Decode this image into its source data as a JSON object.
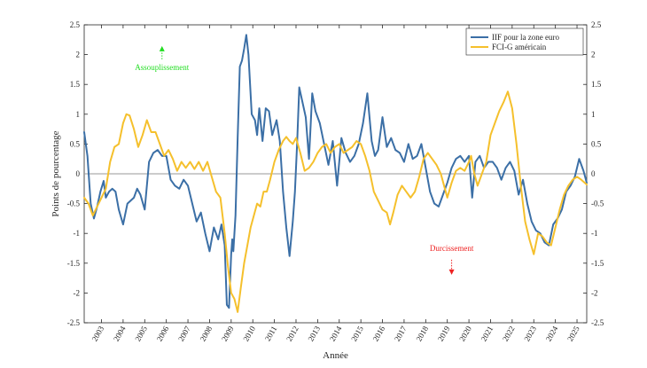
{
  "chart_data": {
    "type": "line",
    "xlabel": "Année",
    "ylabel": "Points de pourcentage",
    "xlim": [
      2002.2,
      2025.45
    ],
    "ylim": [
      -2.5,
      2.5
    ],
    "y_ticks": [
      -2.5,
      -2,
      -1.5,
      -1,
      -0.5,
      0,
      0.5,
      1,
      1.5,
      2,
      2.5
    ],
    "y_tick_labels": [
      "-2.5",
      "-2",
      "-1.5",
      "-1",
      "-0.5",
      "0",
      "0.5",
      "1",
      "1.5",
      "2",
      "2.5"
    ],
    "x_ticks": [
      2003,
      2004,
      2005,
      2006,
      2007,
      2008,
      2009,
      2010,
      2011,
      2012,
      2013,
      2014,
      2015,
      2016,
      2017,
      2018,
      2019,
      2020,
      2021,
      2022,
      2023,
      2024,
      2025
    ],
    "x_tick_labels": [
      "2003",
      "2004",
      "2005",
      "2006",
      "2007",
      "2008",
      "2009",
      "2010",
      "2011",
      "2012",
      "2013",
      "2014",
      "2015",
      "2016",
      "2017",
      "2018",
      "2019",
      "2020",
      "2021",
      "2022",
      "2023",
      "2024",
      "2025"
    ],
    "legend_position": "top-right",
    "annotations": {
      "easing": {
        "text": "Assouplissement",
        "color": "#22dd22",
        "x": 2005.8,
        "y": 2.1,
        "direction": "up"
      },
      "tightening": {
        "text": "Durcissement",
        "color": "#ee2222",
        "x": 2019.2,
        "y": -1.65,
        "direction": "down"
      }
    },
    "series": [
      {
        "name": "IIF pour la zone euro",
        "color": "#3b6fa6",
        "x": [
          2002.2,
          2002.35,
          2002.5,
          2002.65,
          2002.8,
          2002.95,
          2003.1,
          2003.2,
          2003.35,
          2003.5,
          2003.65,
          2003.8,
          2004.0,
          2004.2,
          2004.35,
          2004.5,
          2004.65,
          2004.8,
          2005.0,
          2005.2,
          2005.4,
          2005.6,
          2005.8,
          2006.0,
          2006.2,
          2006.4,
          2006.6,
          2006.8,
          2007.0,
          2007.2,
          2007.4,
          2007.6,
          2007.8,
          2008.0,
          2008.2,
          2008.4,
          2008.55,
          2008.7,
          2008.8,
          2008.9,
          2009.0,
          2009.05,
          2009.1,
          2009.2,
          2009.3,
          2009.4,
          2009.5,
          2009.6,
          2009.7,
          2009.8,
          2009.95,
          2010.1,
          2010.2,
          2010.3,
          2010.45,
          2010.6,
          2010.75,
          2010.9,
          2011.1,
          2011.25,
          2011.4,
          2011.55,
          2011.7,
          2011.85,
          2011.95,
          2012.05,
          2012.15,
          2012.3,
          2012.45,
          2012.6,
          2012.75,
          2012.9,
          2013.1,
          2013.3,
          2013.5,
          2013.7,
          2013.9,
          2014.1,
          2014.3,
          2014.5,
          2014.7,
          2014.9,
          2015.1,
          2015.3,
          2015.5,
          2015.65,
          2015.8,
          2016.0,
          2016.2,
          2016.4,
          2016.6,
          2016.8,
          2017.0,
          2017.2,
          2017.4,
          2017.6,
          2017.8,
          2018.0,
          2018.2,
          2018.4,
          2018.6,
          2018.8,
          2019.0,
          2019.2,
          2019.4,
          2019.6,
          2019.8,
          2020.0,
          2020.15,
          2020.3,
          2020.5,
          2020.7,
          2020.9,
          2021.1,
          2021.3,
          2021.5,
          2021.7,
          2021.9,
          2022.1,
          2022.3,
          2022.5,
          2022.7,
          2022.9,
          2023.1,
          2023.3,
          2023.5,
          2023.7,
          2023.9,
          2024.1,
          2024.3,
          2024.5,
          2024.7,
          2024.9,
          2025.1,
          2025.3,
          2025.45
        ],
        "values": [
          0.7,
          0.3,
          -0.5,
          -0.75,
          -0.55,
          -0.3,
          -0.12,
          -0.4,
          -0.3,
          -0.25,
          -0.3,
          -0.6,
          -0.85,
          -0.5,
          -0.45,
          -0.4,
          -0.25,
          -0.35,
          -0.6,
          0.2,
          0.35,
          0.4,
          0.3,
          0.3,
          -0.1,
          -0.2,
          -0.25,
          -0.1,
          -0.2,
          -0.5,
          -0.8,
          -0.65,
          -1.0,
          -1.3,
          -0.9,
          -1.1,
          -0.85,
          -1.2,
          -2.2,
          -2.25,
          -1.35,
          -1.1,
          -1.3,
          -0.7,
          0.6,
          1.8,
          1.9,
          2.1,
          2.33,
          2.0,
          1.0,
          0.9,
          0.65,
          1.1,
          0.55,
          1.1,
          1.05,
          0.65,
          0.9,
          0.55,
          -0.3,
          -0.9,
          -1.38,
          -0.8,
          -0.3,
          0.5,
          1.45,
          1.2,
          0.95,
          0.25,
          1.35,
          1.05,
          0.85,
          0.5,
          0.15,
          0.55,
          -0.2,
          0.6,
          0.35,
          0.2,
          0.3,
          0.5,
          0.85,
          1.35,
          0.55,
          0.3,
          0.4,
          0.95,
          0.45,
          0.6,
          0.4,
          0.35,
          0.2,
          0.5,
          0.25,
          0.3,
          0.5,
          0.1,
          -0.3,
          -0.5,
          -0.55,
          -0.35,
          -0.15,
          0.1,
          0.25,
          0.3,
          0.2,
          0.3,
          -0.4,
          0.2,
          0.3,
          0.1,
          0.2,
          0.2,
          0.1,
          -0.1,
          0.1,
          0.2,
          0.05,
          -0.35,
          -0.1,
          -0.5,
          -0.8,
          -0.95,
          -1.0,
          -1.15,
          -1.2,
          -0.85,
          -0.75,
          -0.6,
          -0.3,
          -0.2,
          -0.05,
          0.25,
          0.05,
          -0.15
        ]
      },
      {
        "name": "FCI-G américain",
        "color": "#f5c02c",
        "x": [
          2002.2,
          2002.4,
          2002.6,
          2002.8,
          2003.0,
          2003.2,
          2003.4,
          2003.6,
          2003.8,
          2004.0,
          2004.15,
          2004.3,
          2004.5,
          2004.7,
          2004.9,
          2005.1,
          2005.3,
          2005.5,
          2005.7,
          2005.9,
          2006.1,
          2006.3,
          2006.5,
          2006.7,
          2006.9,
          2007.1,
          2007.3,
          2007.5,
          2007.7,
          2007.9,
          2008.1,
          2008.3,
          2008.5,
          2008.7,
          2008.85,
          2009.0,
          2009.15,
          2009.3,
          2009.45,
          2009.6,
          2009.75,
          2009.9,
          2010.05,
          2010.2,
          2010.35,
          2010.5,
          2010.65,
          2010.8,
          2011.0,
          2011.2,
          2011.4,
          2011.55,
          2011.7,
          2011.85,
          2012.0,
          2012.2,
          2012.4,
          2012.6,
          2012.8,
          2013.0,
          2013.2,
          2013.4,
          2013.6,
          2013.8,
          2014.0,
          2014.2,
          2014.4,
          2014.6,
          2014.8,
          2015.0,
          2015.2,
          2015.4,
          2015.6,
          2015.8,
          2016.0,
          2016.2,
          2016.35,
          2016.5,
          2016.7,
          2016.9,
          2017.1,
          2017.3,
          2017.5,
          2017.7,
          2017.9,
          2018.1,
          2018.3,
          2018.5,
          2018.7,
          2018.85,
          2019.0,
          2019.2,
          2019.4,
          2019.6,
          2019.8,
          2020.0,
          2020.1,
          2020.25,
          2020.4,
          2020.6,
          2020.8,
          2021.0,
          2021.2,
          2021.4,
          2021.6,
          2021.8,
          2022.0,
          2022.2,
          2022.4,
          2022.6,
          2022.8,
          2023.0,
          2023.2,
          2023.4,
          2023.6,
          2023.8,
          2024.0,
          2024.2,
          2024.4,
          2024.6,
          2024.8,
          2025.0,
          2025.2,
          2025.45
        ],
        "values": [
          -0.4,
          -0.5,
          -0.7,
          -0.55,
          -0.4,
          -0.25,
          0.2,
          0.45,
          0.5,
          0.85,
          1.0,
          0.98,
          0.75,
          0.45,
          0.65,
          0.9,
          0.7,
          0.7,
          0.5,
          0.3,
          0.4,
          0.25,
          0.05,
          0.2,
          0.1,
          0.2,
          0.08,
          0.2,
          0.05,
          0.2,
          -0.05,
          -0.3,
          -0.4,
          -1.0,
          -1.55,
          -2.0,
          -2.1,
          -2.32,
          -1.9,
          -1.5,
          -1.2,
          -0.9,
          -0.7,
          -0.5,
          -0.55,
          -0.3,
          -0.3,
          -0.1,
          0.2,
          0.4,
          0.55,
          0.62,
          0.55,
          0.5,
          0.6,
          0.35,
          0.05,
          0.1,
          0.2,
          0.35,
          0.45,
          0.5,
          0.35,
          0.45,
          0.5,
          0.35,
          0.4,
          0.45,
          0.55,
          0.5,
          0.3,
          0.05,
          -0.3,
          -0.45,
          -0.6,
          -0.65,
          -0.85,
          -0.65,
          -0.35,
          -0.2,
          -0.3,
          -0.4,
          -0.3,
          -0.05,
          0.25,
          0.35,
          0.25,
          0.15,
          0.0,
          -0.2,
          -0.4,
          -0.15,
          0.05,
          0.1,
          0.05,
          0.2,
          0.3,
          0.0,
          -0.2,
          0.0,
          0.2,
          0.65,
          0.85,
          1.05,
          1.2,
          1.38,
          1.1,
          0.5,
          -0.2,
          -0.8,
          -1.1,
          -1.35,
          -1.0,
          -1.05,
          -1.15,
          -1.2,
          -0.9,
          -0.6,
          -0.35,
          -0.2,
          -0.1,
          -0.05,
          -0.1,
          -0.18
        ]
      }
    ]
  }
}
